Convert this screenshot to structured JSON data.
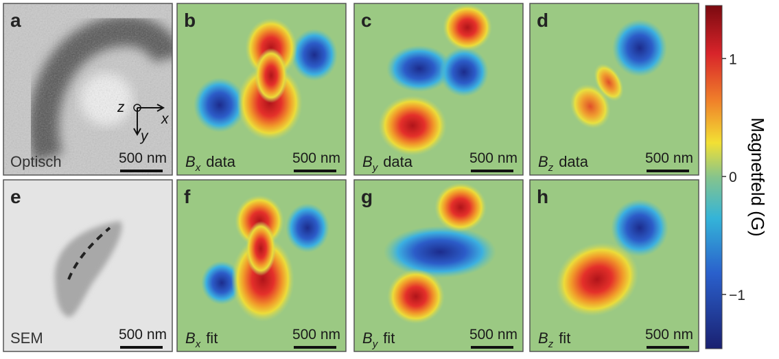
{
  "panels": [
    {
      "letter": "a",
      "caption": "Optisch",
      "scale_bar": "500 nm"
    },
    {
      "letter": "b",
      "symbol": "B",
      "subscript": "x",
      "caption": "data",
      "scale_bar": "500 nm"
    },
    {
      "letter": "c",
      "symbol": "B",
      "subscript": "y",
      "caption": "data",
      "scale_bar": "500 nm"
    },
    {
      "letter": "d",
      "symbol": "B",
      "subscript": "z",
      "caption": "data",
      "scale_bar": "500 nm"
    },
    {
      "letter": "e",
      "caption": "SEM",
      "scale_bar": "500 nm"
    },
    {
      "letter": "f",
      "symbol": "B",
      "subscript": "x",
      "caption": "fit",
      "scale_bar": "500 nm"
    },
    {
      "letter": "g",
      "symbol": "B",
      "subscript": "y",
      "caption": "fit",
      "scale_bar": "500 nm"
    },
    {
      "letter": "h",
      "symbol": "B",
      "subscript": "z",
      "caption": "fit",
      "scale_bar": "500 nm"
    }
  ],
  "axes_labels": {
    "z": "z",
    "x": "x",
    "y": "y"
  },
  "colorbar": {
    "label": "Magnetfeld (G)",
    "lim": [
      -1.46,
      1.45
    ],
    "ticks": [
      1,
      0,
      {
        "value": -1,
        "label": "−1"
      }
    ]
  }
}
